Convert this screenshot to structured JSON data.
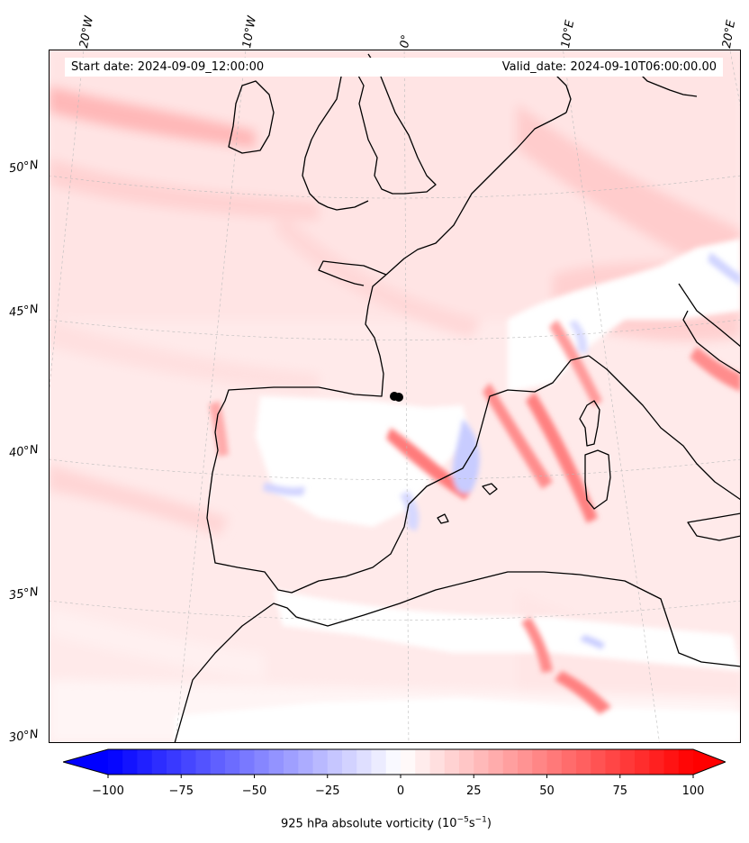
{
  "map": {
    "start_label": "Start date: 2024-09-09_12:00:00",
    "valid_label": "Valid_date: 2024-09-10T06:00:00.00",
    "variable": "925 hPa absolute vorticity",
    "units_base": "(10",
    "units_exp1": "−5",
    "units_mid": "s",
    "units_exp2": "−1",
    "units_close": ")",
    "colormap": "bwr",
    "colors": {
      "negative": "#0000ff",
      "zero": "#ffffff",
      "positive": "#ff0000",
      "coast": "#000000",
      "grid": "#bbbbbb"
    },
    "lon_labels": [
      "20°W",
      "10°W",
      "0°",
      "10°E",
      "20°E"
    ],
    "lat_labels": [
      "50°N",
      "45°N",
      "40°N",
      "35°N",
      "30°N"
    ],
    "colorbar": {
      "min": -100,
      "max": 100,
      "extend": "both",
      "ticks": [
        {
          "label": "−100",
          "value": -100
        },
        {
          "label": "−75",
          "value": -75
        },
        {
          "label": "−50",
          "value": -50
        },
        {
          "label": "−25",
          "value": -25
        },
        {
          "label": "0",
          "value": 0
        },
        {
          "label": "25",
          "value": 25
        },
        {
          "label": "50",
          "value": 50
        },
        {
          "label": "75",
          "value": 75
        },
        {
          "label": "100",
          "value": 100
        }
      ]
    }
  }
}
